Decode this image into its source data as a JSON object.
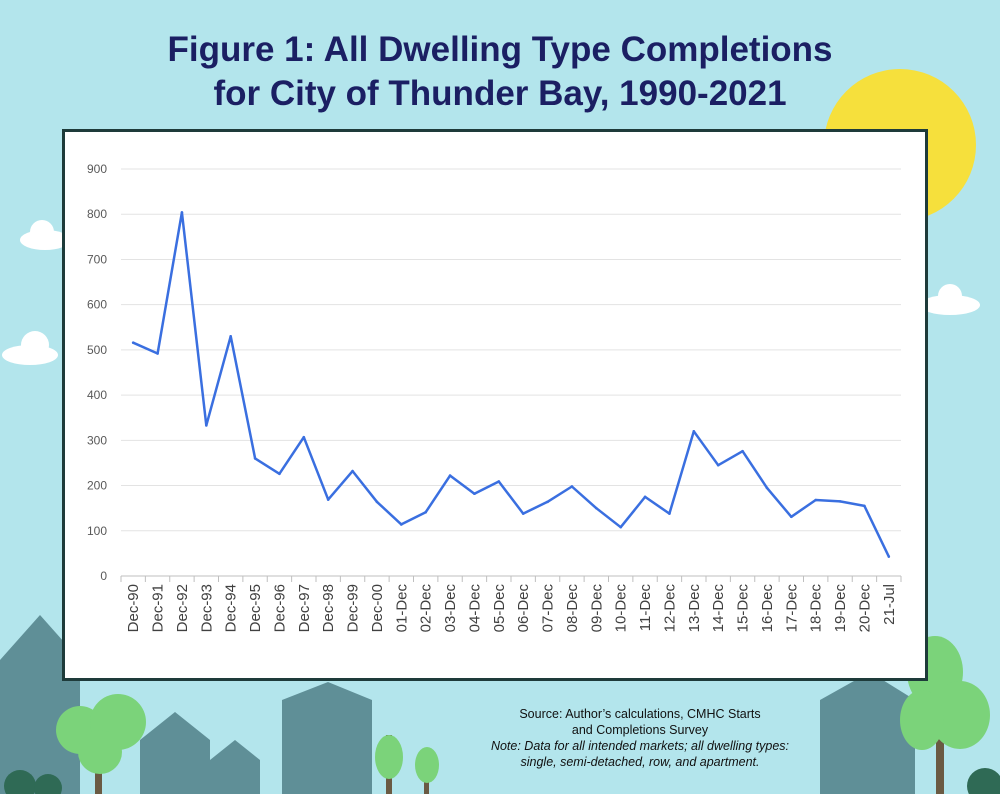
{
  "header": {
    "title_line1": "Figure 1: All Dwelling Type Completions",
    "title_line2": "for City of Thunder Bay, 1990-2021"
  },
  "footer": {
    "source_line1": "Source: Author’s calculations, CMHC Starts",
    "source_line2": "and Completions Survey",
    "note_line1": "Note: Data for all intended markets; all dwelling types:",
    "note_line2": "single, semi-detached, row, and apartment."
  },
  "colors": {
    "background": "#b3e5ec",
    "title": "#1b1f63",
    "line": "#3a6fe0",
    "sun": "#f6e03c",
    "frame": "#1e3b3a"
  },
  "chart_data": {
    "type": "line",
    "title": "Figure 1: All Dwelling Type Completions for City of Thunder Bay, 1990-2021",
    "xlabel": "",
    "ylabel": "",
    "ylim": [
      0,
      900
    ],
    "yticks": [
      0,
      100,
      200,
      300,
      400,
      500,
      600,
      700,
      800,
      900
    ],
    "grid": true,
    "legend": "none",
    "categories": [
      "Dec-90",
      "Dec-91",
      "Dec-92",
      "Dec-93",
      "Dec-94",
      "Dec-95",
      "Dec-96",
      "Dec-97",
      "Dec-98",
      "Dec-99",
      "Dec-00",
      "01-Dec",
      "02-Dec",
      "03-Dec",
      "04-Dec",
      "05-Dec",
      "06-Dec",
      "07-Dec",
      "08-Dec",
      "09-Dec",
      "10-Dec",
      "11-Dec",
      "12-Dec",
      "13-Dec",
      "14-Dec",
      "15-Dec",
      "16-Dec",
      "17-Dec",
      "18-Dec",
      "19-Dec",
      "20-Dec",
      "21-Jul"
    ],
    "series": [
      {
        "values": [
          516,
          492,
          804,
          333,
          530,
          260,
          226,
          307,
          169,
          232,
          164,
          114,
          141,
          222,
          182,
          209,
          138,
          164,
          198,
          150,
          108,
          175,
          138,
          320,
          245,
          276,
          195,
          131,
          168,
          165,
          155,
          43
        ]
      }
    ]
  }
}
